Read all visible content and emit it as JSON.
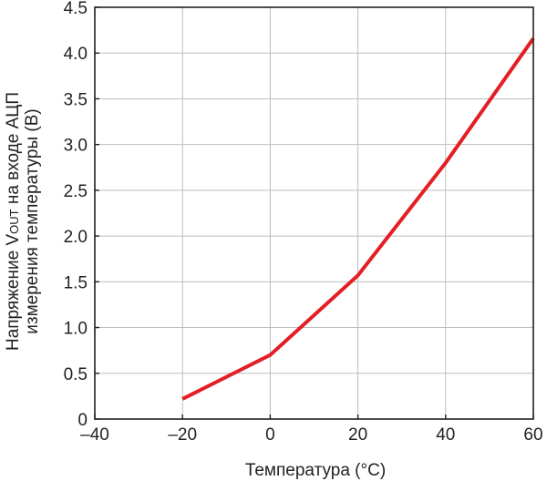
{
  "chart_data": {
    "type": "line",
    "title": "",
    "xlabel": "Температура (°C)",
    "ylabel_line1_prefix": "Напряжение V",
    "ylabel_line1_subscript": "OUT",
    "ylabel_line1_suffix": " на входе АЦП",
    "ylabel_line2": "измерения температуры (В)",
    "xlim": [
      -40,
      60
    ],
    "ylim": [
      0,
      4.5
    ],
    "x_ticks": [
      -40,
      -20,
      0,
      20,
      40,
      60
    ],
    "x_tick_labels": [
      "–40",
      "–20",
      "0",
      "20",
      "40",
      "60"
    ],
    "y_ticks": [
      0,
      0.5,
      1.0,
      1.5,
      2.0,
      2.5,
      3.0,
      3.5,
      4.0,
      4.5
    ],
    "y_tick_labels": [
      "0",
      "0.5",
      "1.0",
      "1.5",
      "2.0",
      "2.5",
      "3.0",
      "3.5",
      "4.0",
      "4.5"
    ],
    "grid": true,
    "series": [
      {
        "color": "#e31e24",
        "x": [
          -20,
          0,
          20,
          40,
          60
        ],
        "y": [
          0.22,
          0.7,
          1.57,
          2.8,
          4.16
        ]
      }
    ]
  }
}
